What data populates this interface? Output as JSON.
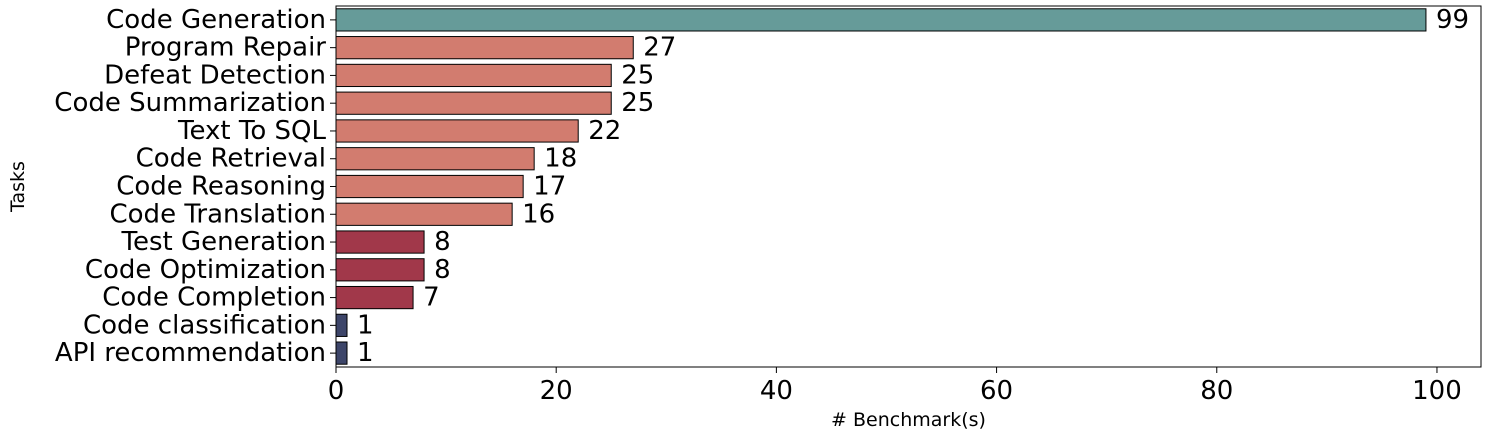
{
  "chart_data": {
    "type": "bar",
    "orientation": "horizontal",
    "categories": [
      "Code Generation",
      "Program Repair",
      "Defeat Detection",
      "Code Summarization",
      "Text To SQL",
      "Code Retrieval",
      "Code Reasoning",
      "Code Translation",
      "Test Generation",
      "Code Optimization",
      "Code Completion",
      "Code classification",
      "API recommendation"
    ],
    "values": [
      99,
      27,
      25,
      25,
      22,
      18,
      17,
      16,
      8,
      8,
      7,
      1,
      1
    ],
    "value_labels": [
      "99",
      "27",
      "25",
      "25",
      "22",
      "18",
      "17",
      "16",
      "8",
      "8",
      "7",
      "1",
      "1"
    ],
    "bar_colors": [
      "#669b99",
      "#d27c6f",
      "#d27c6f",
      "#d27c6f",
      "#d27c6f",
      "#d27c6f",
      "#d27c6f",
      "#d27c6f",
      "#a1384a",
      "#a1384a",
      "#a1384a",
      "#3d4569",
      "#3d4569"
    ],
    "xlabel": "# Benchmark(s)",
    "ylabel": "Tasks",
    "xlim": [
      0,
      104
    ],
    "xticks": [
      0,
      20,
      40,
      60,
      80,
      100
    ],
    "xtick_labels": [
      "0",
      "20",
      "40",
      "60",
      "80",
      "100"
    ],
    "grid": false,
    "legend": false
  }
}
